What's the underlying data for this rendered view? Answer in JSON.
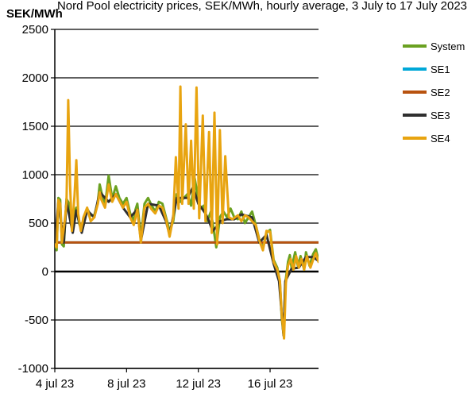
{
  "chart_data": {
    "type": "line",
    "title": "Nord Pool electricity prices, SEK/MWh, hourly average, 3 July to 17 July 2023",
    "ylabel": "SEK/MWh",
    "xlabel": "",
    "ylim": [
      -1000,
      2500
    ],
    "yticks": [
      -1000,
      -500,
      0,
      500,
      1000,
      1500,
      2000,
      2500
    ],
    "xlim": [
      0,
      14.7
    ],
    "xtick_labels": [
      {
        "x": 0,
        "label": "4 jul 23"
      },
      {
        "x": 4,
        "label": "8 jul 23"
      },
      {
        "x": 8,
        "label": "12 jul 23"
      },
      {
        "x": 12,
        "label": "16 jul 23"
      }
    ],
    "grid": "horizontal",
    "legend_position": "right",
    "series": [
      {
        "name": "System",
        "color": "#6aa121",
        "width": 3,
        "points": [
          [
            0,
            300
          ],
          [
            0.1,
            220
          ],
          [
            0.2,
            760
          ],
          [
            0.3,
            740
          ],
          [
            0.4,
            280
          ],
          [
            0.5,
            260
          ],
          [
            0.65,
            750
          ],
          [
            0.8,
            700
          ],
          [
            1.0,
            420
          ],
          [
            1.1,
            620
          ],
          [
            1.2,
            660
          ],
          [
            1.35,
            500
          ],
          [
            1.5,
            420
          ],
          [
            1.6,
            560
          ],
          [
            1.8,
            650
          ],
          [
            2.0,
            580
          ],
          [
            2.2,
            580
          ],
          [
            2.4,
            720
          ],
          [
            2.5,
            900
          ],
          [
            2.6,
            820
          ],
          [
            2.8,
            680
          ],
          [
            3.0,
            990
          ],
          [
            3.2,
            750
          ],
          [
            3.4,
            880
          ],
          [
            3.6,
            760
          ],
          [
            3.8,
            700
          ],
          [
            4.0,
            760
          ],
          [
            4.2,
            600
          ],
          [
            4.4,
            520
          ],
          [
            4.5,
            640
          ],
          [
            4.6,
            700
          ],
          [
            4.8,
            350
          ],
          [
            5.0,
            700
          ],
          [
            5.2,
            760
          ],
          [
            5.4,
            680
          ],
          [
            5.6,
            620
          ],
          [
            5.8,
            720
          ],
          [
            6.0,
            700
          ],
          [
            6.2,
            560
          ],
          [
            6.4,
            420
          ],
          [
            6.6,
            520
          ],
          [
            6.8,
            800
          ],
          [
            7.0,
            720
          ],
          [
            7.2,
            760
          ],
          [
            7.4,
            800
          ],
          [
            7.6,
            680
          ],
          [
            7.8,
            960
          ],
          [
            8.0,
            740
          ],
          [
            8.1,
            650
          ],
          [
            8.3,
            680
          ],
          [
            8.5,
            520
          ],
          [
            8.7,
            620
          ],
          [
            8.9,
            380
          ],
          [
            9.0,
            250
          ],
          [
            9.2,
            560
          ],
          [
            9.4,
            620
          ],
          [
            9.6,
            560
          ],
          [
            9.8,
            650
          ],
          [
            10.0,
            560
          ],
          [
            10.2,
            540
          ],
          [
            10.4,
            620
          ],
          [
            10.6,
            500
          ],
          [
            10.8,
            560
          ],
          [
            11.0,
            620
          ],
          [
            11.2,
            480
          ],
          [
            11.4,
            330
          ],
          [
            11.6,
            240
          ],
          [
            11.8,
            400
          ],
          [
            12.0,
            430
          ],
          [
            12.2,
            120
          ],
          [
            12.4,
            40
          ],
          [
            12.55,
            -100
          ],
          [
            12.65,
            -480
          ],
          [
            12.75,
            -650
          ],
          [
            12.85,
            -120
          ],
          [
            13.0,
            100
          ],
          [
            13.1,
            170
          ],
          [
            13.2,
            40
          ],
          [
            13.4,
            200
          ],
          [
            13.55,
            60
          ],
          [
            13.7,
            160
          ],
          [
            13.9,
            20
          ],
          [
            14.0,
            200
          ],
          [
            14.2,
            60
          ],
          [
            14.4,
            180
          ],
          [
            14.55,
            230
          ],
          [
            14.7,
            120
          ]
        ]
      },
      {
        "name": "SE1",
        "color": "#00a8d8",
        "width": 3,
        "points": [
          [
            0,
            300
          ],
          [
            14.7,
            300
          ]
        ]
      },
      {
        "name": "SE2",
        "color": "#b8520f",
        "width": 3,
        "points": [
          [
            0,
            300
          ],
          [
            14.7,
            300
          ]
        ]
      },
      {
        "name": "SE3",
        "color": "#2f2f2f",
        "width": 3,
        "points": [
          [
            0,
            280
          ],
          [
            0.2,
            720
          ],
          [
            0.5,
            300
          ],
          [
            0.65,
            720
          ],
          [
            1.0,
            400
          ],
          [
            1.2,
            630
          ],
          [
            1.5,
            400
          ],
          [
            1.8,
            630
          ],
          [
            2.2,
            560
          ],
          [
            2.5,
            820
          ],
          [
            3.0,
            720
          ],
          [
            3.4,
            800
          ],
          [
            3.8,
            660
          ],
          [
            4.2,
            560
          ],
          [
            4.6,
            640
          ],
          [
            4.8,
            320
          ],
          [
            5.2,
            700
          ],
          [
            5.8,
            680
          ],
          [
            6.2,
            520
          ],
          [
            6.4,
            380
          ],
          [
            6.8,
            760
          ],
          [
            7.4,
            760
          ],
          [
            7.7,
            870
          ],
          [
            8.0,
            700
          ],
          [
            8.4,
            600
          ],
          [
            8.6,
            520
          ],
          [
            8.8,
            420
          ],
          [
            9.0,
            460
          ],
          [
            9.2,
            520
          ],
          [
            9.6,
            540
          ],
          [
            10.0,
            540
          ],
          [
            10.4,
            590
          ],
          [
            11.0,
            560
          ],
          [
            11.4,
            300
          ],
          [
            11.8,
            380
          ],
          [
            12.2,
            80
          ],
          [
            12.5,
            -100
          ],
          [
            12.75,
            -660
          ],
          [
            12.85,
            -100
          ],
          [
            13.2,
            30
          ],
          [
            13.6,
            40
          ],
          [
            14.0,
            150
          ],
          [
            14.4,
            150
          ],
          [
            14.7,
            110
          ]
        ]
      },
      {
        "name": "SE4",
        "color": "#e8a410",
        "width": 3,
        "points": [
          [
            0,
            280
          ],
          [
            0.1,
            250
          ],
          [
            0.2,
            740
          ],
          [
            0.3,
            700
          ],
          [
            0.4,
            300
          ],
          [
            0.55,
            520
          ],
          [
            0.65,
            700
          ],
          [
            0.75,
            1770
          ],
          [
            0.85,
            900
          ],
          [
            0.95,
            420
          ],
          [
            1.1,
            780
          ],
          [
            1.2,
            1150
          ],
          [
            1.3,
            600
          ],
          [
            1.45,
            420
          ],
          [
            1.6,
            560
          ],
          [
            1.8,
            660
          ],
          [
            2.0,
            520
          ],
          [
            2.2,
            560
          ],
          [
            2.4,
            700
          ],
          [
            2.5,
            820
          ],
          [
            2.6,
            740
          ],
          [
            2.8,
            660
          ],
          [
            3.0,
            900
          ],
          [
            3.2,
            720
          ],
          [
            3.4,
            800
          ],
          [
            3.6,
            730
          ],
          [
            3.8,
            660
          ],
          [
            4.0,
            720
          ],
          [
            4.2,
            560
          ],
          [
            4.4,
            480
          ],
          [
            4.6,
            640
          ],
          [
            4.8,
            300
          ],
          [
            5.0,
            660
          ],
          [
            5.2,
            700
          ],
          [
            5.4,
            640
          ],
          [
            5.6,
            600
          ],
          [
            5.8,
            680
          ],
          [
            6.0,
            660
          ],
          [
            6.2,
            540
          ],
          [
            6.4,
            360
          ],
          [
            6.6,
            560
          ],
          [
            6.75,
            1180
          ],
          [
            6.9,
            650
          ],
          [
            7.0,
            1910
          ],
          [
            7.1,
            700
          ],
          [
            7.3,
            1520
          ],
          [
            7.45,
            700
          ],
          [
            7.6,
            1350
          ],
          [
            7.75,
            650
          ],
          [
            7.9,
            1900
          ],
          [
            8.05,
            550
          ],
          [
            8.25,
            1610
          ],
          [
            8.4,
            520
          ],
          [
            8.6,
            1440
          ],
          [
            8.75,
            400
          ],
          [
            8.9,
            1640
          ],
          [
            9.05,
            280
          ],
          [
            9.2,
            1460
          ],
          [
            9.35,
            500
          ],
          [
            9.5,
            1190
          ],
          [
            9.7,
            560
          ],
          [
            9.9,
            540
          ],
          [
            10.2,
            580
          ],
          [
            10.4,
            520
          ],
          [
            10.6,
            580
          ],
          [
            10.8,
            560
          ],
          [
            11.0,
            520
          ],
          [
            11.2,
            480
          ],
          [
            11.4,
            320
          ],
          [
            11.6,
            220
          ],
          [
            11.8,
            420
          ],
          [
            12.0,
            410
          ],
          [
            12.2,
            100
          ],
          [
            12.4,
            20
          ],
          [
            12.55,
            -100
          ],
          [
            12.65,
            -440
          ],
          [
            12.78,
            -690
          ],
          [
            12.88,
            -120
          ],
          [
            13.0,
            60
          ],
          [
            13.15,
            130
          ],
          [
            13.3,
            20
          ],
          [
            13.45,
            160
          ],
          [
            13.6,
            40
          ],
          [
            13.75,
            130
          ],
          [
            13.9,
            20
          ],
          [
            14.05,
            160
          ],
          [
            14.25,
            40
          ],
          [
            14.45,
            150
          ],
          [
            14.55,
            190
          ],
          [
            14.7,
            100
          ]
        ]
      }
    ]
  }
}
